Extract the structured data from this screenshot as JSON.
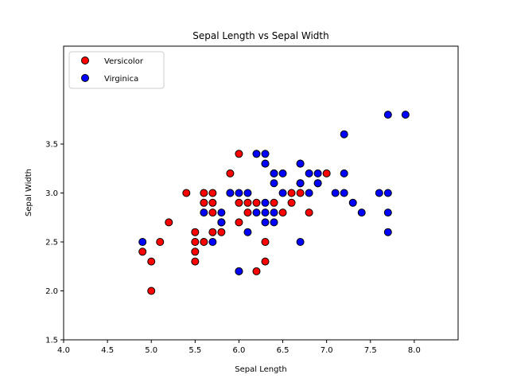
{
  "chart_data": {
    "type": "scatter",
    "title": "Sepal Length vs Sepal Width",
    "xlabel": "Sepal Length",
    "ylabel": "Sepal Width",
    "xlim": [
      4.0,
      8.5
    ],
    "ylim": [
      1.5,
      4.5
    ],
    "xticks": [
      4.0,
      4.5,
      5.0,
      5.5,
      6.0,
      6.5,
      7.0,
      7.5,
      8.0
    ],
    "xtick_labels": [
      "4.0",
      "4.5",
      "5.0",
      "5.5",
      "6.0",
      "6.5",
      "7.0",
      "7.5",
      "8.0"
    ],
    "yticks": [
      1.5,
      2.0,
      2.5,
      3.0,
      3.5
    ],
    "ytick_labels": [
      "1.5",
      "2.0",
      "2.5",
      "3.0",
      "3.5"
    ],
    "grid": false,
    "legend_position": "top-left",
    "series": [
      {
        "name": "Versicolor",
        "color": "#ff0000",
        "points": [
          [
            7.0,
            3.2
          ],
          [
            6.4,
            3.2
          ],
          [
            6.9,
            3.1
          ],
          [
            5.5,
            2.3
          ],
          [
            6.5,
            2.8
          ],
          [
            5.7,
            2.8
          ],
          [
            6.3,
            3.3
          ],
          [
            4.9,
            2.4
          ],
          [
            6.6,
            2.9
          ],
          [
            5.2,
            2.7
          ],
          [
            5.0,
            2.0
          ],
          [
            5.9,
            3.0
          ],
          [
            6.0,
            2.2
          ],
          [
            6.1,
            2.9
          ],
          [
            5.6,
            2.9
          ],
          [
            6.7,
            3.1
          ],
          [
            5.6,
            3.0
          ],
          [
            5.8,
            2.7
          ],
          [
            6.2,
            2.2
          ],
          [
            5.6,
            2.5
          ],
          [
            5.9,
            3.2
          ],
          [
            6.1,
            2.8
          ],
          [
            6.3,
            2.5
          ],
          [
            6.4,
            2.9
          ],
          [
            6.6,
            3.0
          ],
          [
            6.8,
            2.8
          ],
          [
            6.7,
            3.0
          ],
          [
            6.0,
            2.9
          ],
          [
            5.7,
            2.6
          ],
          [
            5.5,
            2.4
          ],
          [
            5.8,
            2.7
          ],
          [
            6.0,
            2.7
          ],
          [
            5.4,
            3.0
          ],
          [
            6.0,
            3.4
          ],
          [
            6.3,
            2.3
          ],
          [
            5.5,
            2.5
          ],
          [
            5.5,
            2.6
          ],
          [
            5.8,
            2.6
          ],
          [
            5.0,
            2.3
          ],
          [
            5.7,
            3.0
          ],
          [
            5.7,
            2.9
          ],
          [
            6.2,
            2.9
          ],
          [
            5.1,
            2.5
          ]
        ]
      },
      {
        "name": "Virginica",
        "color": "#0000ff",
        "points": [
          [
            6.3,
            3.3
          ],
          [
            5.8,
            2.7
          ],
          [
            7.1,
            3.0
          ],
          [
            6.3,
            2.9
          ],
          [
            6.5,
            3.0
          ],
          [
            7.6,
            3.0
          ],
          [
            4.9,
            2.5
          ],
          [
            7.3,
            2.9
          ],
          [
            6.7,
            2.5
          ],
          [
            7.2,
            3.6
          ],
          [
            6.5,
            3.2
          ],
          [
            6.4,
            2.7
          ],
          [
            6.8,
            3.0
          ],
          [
            5.7,
            2.5
          ],
          [
            5.8,
            2.8
          ],
          [
            6.4,
            3.2
          ],
          [
            7.7,
            3.8
          ],
          [
            7.7,
            2.6
          ],
          [
            6.0,
            2.2
          ],
          [
            6.9,
            3.2
          ],
          [
            5.6,
            2.8
          ],
          [
            7.7,
            2.8
          ],
          [
            6.3,
            2.7
          ],
          [
            6.7,
            3.3
          ],
          [
            7.2,
            3.2
          ],
          [
            6.2,
            2.8
          ],
          [
            6.1,
            3.0
          ],
          [
            6.4,
            2.8
          ],
          [
            7.2,
            3.0
          ],
          [
            7.4,
            2.8
          ],
          [
            7.9,
            3.8
          ],
          [
            6.1,
            2.6
          ],
          [
            7.7,
            3.0
          ],
          [
            6.3,
            3.4
          ],
          [
            6.4,
            3.1
          ],
          [
            6.9,
            3.1
          ],
          [
            6.7,
            3.1
          ],
          [
            5.9,
            3.0
          ],
          [
            6.8,
            3.2
          ],
          [
            6.7,
            3.3
          ],
          [
            6.0,
            3.0
          ],
          [
            6.2,
            3.4
          ],
          [
            6.3,
            2.8
          ]
        ]
      }
    ]
  }
}
